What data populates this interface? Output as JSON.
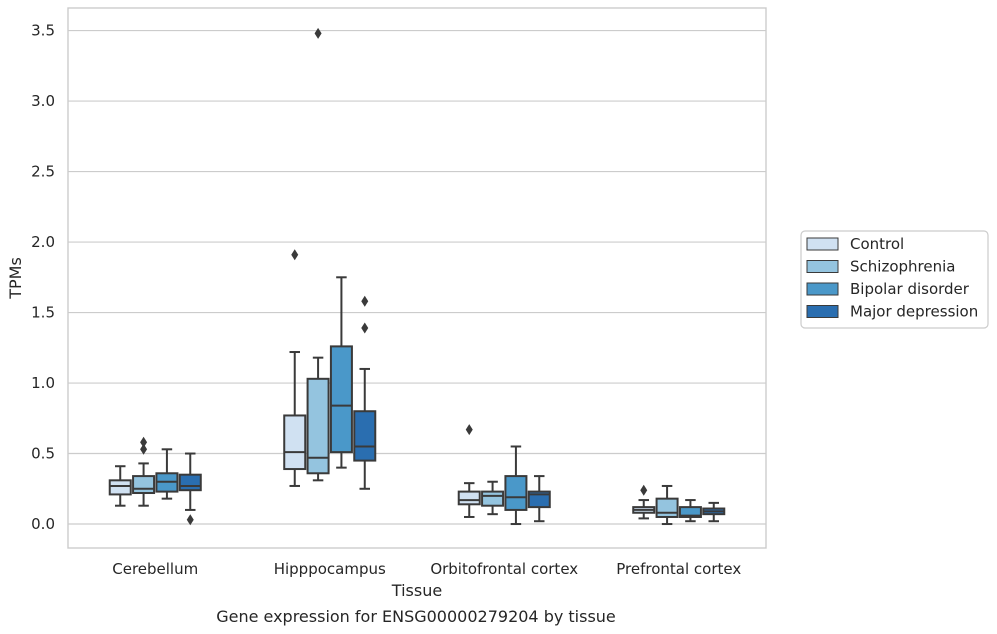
{
  "chart_data": {
    "type": "box",
    "xlabel": "Tissue",
    "ylabel": "TPMs",
    "caption": "Gene expression for ENSG00000279204 by tissue",
    "ylim": [
      -0.17,
      3.66
    ],
    "yticks": [
      0.0,
      0.5,
      1.0,
      1.5,
      2.0,
      2.5,
      3.0,
      3.5
    ],
    "ytick_labels": [
      "0.0",
      "0.5",
      "1.0",
      "1.5",
      "2.0",
      "2.5",
      "3.0",
      "3.5"
    ],
    "grid": "horizontal",
    "legend_position": "right",
    "categories": [
      "Cerebellum",
      "Hipppocampus",
      "Orbitofrontal cortex",
      "Prefrontal cortex"
    ],
    "series": [
      {
        "name": "Control",
        "color": "#d0e1f2",
        "boxes": [
          {
            "whislo": 0.13,
            "q1": 0.21,
            "med": 0.27,
            "q3": 0.31,
            "whishi": 0.41,
            "fliers": []
          },
          {
            "whislo": 0.27,
            "q1": 0.39,
            "med": 0.51,
            "q3": 0.77,
            "whishi": 1.22,
            "fliers": [
              1.91
            ]
          },
          {
            "whislo": 0.05,
            "q1": 0.14,
            "med": 0.17,
            "q3": 0.23,
            "whishi": 0.29,
            "fliers": [
              0.67
            ]
          },
          {
            "whislo": 0.04,
            "q1": 0.08,
            "med": 0.1,
            "q3": 0.12,
            "whishi": 0.17,
            "fliers": [
              0.24
            ]
          }
        ]
      },
      {
        "name": "Schizophrenia",
        "color": "#94c4df",
        "boxes": [
          {
            "whislo": 0.13,
            "q1": 0.22,
            "med": 0.25,
            "q3": 0.34,
            "whishi": 0.43,
            "fliers": [
              0.53,
              0.58
            ]
          },
          {
            "whislo": 0.31,
            "q1": 0.36,
            "med": 0.47,
            "q3": 1.03,
            "whishi": 1.18,
            "fliers": [
              3.48
            ]
          },
          {
            "whislo": 0.07,
            "q1": 0.13,
            "med": 0.2,
            "q3": 0.23,
            "whishi": 0.3,
            "fliers": []
          },
          {
            "whislo": 0.0,
            "q1": 0.05,
            "med": 0.08,
            "q3": 0.18,
            "whishi": 0.27,
            "fliers": []
          }
        ]
      },
      {
        "name": "Bipolar disorder",
        "color": "#4a98c9",
        "boxes": [
          {
            "whislo": 0.18,
            "q1": 0.23,
            "med": 0.3,
            "q3": 0.36,
            "whishi": 0.53,
            "fliers": []
          },
          {
            "whislo": 0.4,
            "q1": 0.51,
            "med": 0.84,
            "q3": 1.26,
            "whishi": 1.75,
            "fliers": []
          },
          {
            "whislo": 0.0,
            "q1": 0.1,
            "med": 0.19,
            "q3": 0.34,
            "whishi": 0.55,
            "fliers": []
          },
          {
            "whislo": 0.02,
            "q1": 0.05,
            "med": 0.06,
            "q3": 0.12,
            "whishi": 0.17,
            "fliers": []
          }
        ]
      },
      {
        "name": "Major depression",
        "color": "#2a6eb0",
        "boxes": [
          {
            "whislo": 0.1,
            "q1": 0.24,
            "med": 0.27,
            "q3": 0.35,
            "whishi": 0.5,
            "fliers": [
              0.03
            ]
          },
          {
            "whislo": 0.25,
            "q1": 0.45,
            "med": 0.55,
            "q3": 0.8,
            "whishi": 1.1,
            "fliers": [
              1.39,
              1.58
            ]
          },
          {
            "whislo": 0.02,
            "q1": 0.12,
            "med": 0.21,
            "q3": 0.23,
            "whishi": 0.34,
            "fliers": []
          },
          {
            "whislo": 0.02,
            "q1": 0.07,
            "med": 0.09,
            "q3": 0.11,
            "whishi": 0.15,
            "fliers": []
          }
        ]
      }
    ]
  },
  "colors": {
    "grid": "#cccccc",
    "frame": "#cccccc",
    "box_edge": "#3a3a3a",
    "text": "#262626"
  }
}
